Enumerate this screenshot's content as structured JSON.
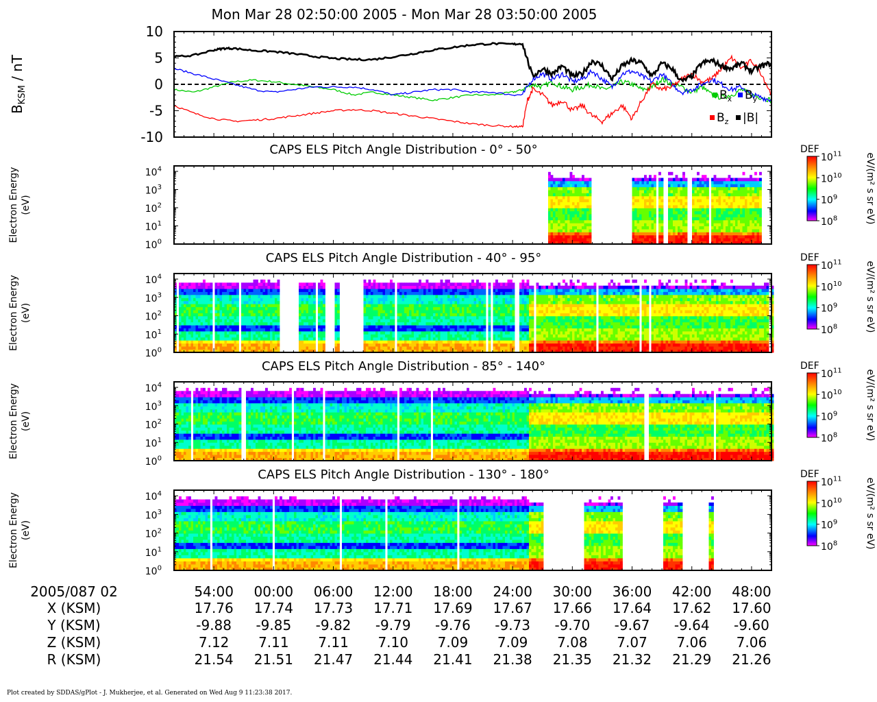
{
  "figure": {
    "title": "Mon Mar 28 02:50:00 2005 - Mon Mar 28 03:50:00 2005",
    "footer": "Plot created by SDDAS/gPlot - J. Mukherjee, et al.  Generated on Wed Aug 9 11:23:38 2017."
  },
  "ephemeris": {
    "date_label": "2005/087 02",
    "rows": [
      {
        "label": "X (KSM)",
        "values": [
          "17.76",
          "17.74",
          "17.73",
          "17.71",
          "17.69",
          "17.67",
          "17.66",
          "17.64",
          "17.62",
          "17.60"
        ]
      },
      {
        "label": "Y (KSM)",
        "values": [
          "-9.88",
          "-9.85",
          "-9.82",
          "-9.79",
          "-9.76",
          "-9.73",
          "-9.70",
          "-9.67",
          "-9.64",
          "-9.60"
        ]
      },
      {
        "label": "Z (KSM)",
        "values": [
          "7.12",
          "7.11",
          "7.11",
          "7.10",
          "7.09",
          "7.09",
          "7.08",
          "7.07",
          "7.06",
          "7.06"
        ]
      },
      {
        "label": "R (KSM)",
        "values": [
          "21.54",
          "21.51",
          "21.47",
          "21.44",
          "21.41",
          "21.38",
          "21.35",
          "21.32",
          "21.29",
          "21.26"
        ]
      }
    ]
  },
  "colorbar": {
    "label": "DEF",
    "unit": "eV/(m² s sr eV)",
    "ticks": [
      {
        "base": "10",
        "exp": "11"
      },
      {
        "base": "10",
        "exp": "10"
      },
      {
        "base": "10",
        "exp": "9"
      },
      {
        "base": "10",
        "exp": "8"
      }
    ],
    "colors": [
      "#ff0000",
      "#ff8800",
      "#ffff00",
      "#00ff00",
      "#00ffff",
      "#0000ff",
      "#ff00ff"
    ]
  },
  "chart_data": [
    {
      "type": "line",
      "ylabel_main": "B",
      "ylabel_sub": "KSM",
      "ylabel_rest": " / nT",
      "ylim": [
        -10,
        10
      ],
      "yticks": [
        10,
        5,
        0,
        -5,
        -10
      ],
      "x_minutes": [
        0,
        60
      ],
      "xtick_labels": [
        "54:00",
        "00:00",
        "06:00",
        "12:00",
        "18:00",
        "24:00",
        "30:00",
        "36:00",
        "42:00",
        "48:00"
      ],
      "xtick_minutes": [
        4,
        10,
        16,
        22,
        28,
        34,
        40,
        46,
        52,
        58
      ],
      "zero_line": true,
      "series": [
        {
          "name": "|B|",
          "color": "#000000",
          "x": [
            0,
            2,
            4,
            5,
            6,
            8,
            10,
            12,
            14,
            16,
            18,
            20,
            22,
            24,
            26,
            28,
            30,
            32,
            34,
            35,
            36,
            37,
            38,
            39,
            40,
            41,
            42,
            43,
            44,
            45,
            46,
            47,
            48,
            49,
            50,
            51,
            52,
            53,
            54,
            55,
            56,
            57,
            58,
            59,
            60
          ],
          "y": [
            5.2,
            5.5,
            6.5,
            6.8,
            6.8,
            6.4,
            6.2,
            5.8,
            5.3,
            4.9,
            4.7,
            4.7,
            5.2,
            5.8,
            6.5,
            7.0,
            7.5,
            7.7,
            7.6,
            7.7,
            1.5,
            3.0,
            2.0,
            3.5,
            1.5,
            2.0,
            4.5,
            3.5,
            1.0,
            3.5,
            4.5,
            4.0,
            1.5,
            4.0,
            3.0,
            0.5,
            1.5,
            4.0,
            4.5,
            3.5,
            3.0,
            4.0,
            2.5,
            3.5,
            4.0
          ]
        },
        {
          "name": "Bx",
          "color": "#00cc00",
          "x": [
            0,
            2,
            4,
            6,
            8,
            10,
            12,
            14,
            16,
            18,
            20,
            22,
            24,
            26,
            28,
            30,
            32,
            34,
            35,
            36,
            37,
            38,
            39,
            40,
            41,
            42,
            43,
            44,
            45,
            46,
            47,
            48,
            49,
            50,
            51,
            52,
            53,
            54,
            55,
            56,
            57,
            58,
            59,
            60
          ],
          "y": [
            -1.0,
            -1.5,
            -0.5,
            0.5,
            0.8,
            0.5,
            0.0,
            -0.5,
            -1.0,
            -2.0,
            -1.5,
            -2.0,
            -2.5,
            -3.0,
            -2.5,
            -2.0,
            -2.0,
            -1.5,
            -1.0,
            0.0,
            -0.5,
            0.5,
            -0.5,
            -1.0,
            -0.5,
            0.0,
            -1.0,
            -0.5,
            0.5,
            0.0,
            -1.0,
            -0.5,
            1.0,
            0.0,
            -0.5,
            -1.5,
            -0.5,
            -2.0,
            -2.5,
            -2.0,
            -1.0,
            -2.0,
            -2.5,
            -3.0
          ]
        },
        {
          "name": "By",
          "color": "#0000ff",
          "x": [
            0,
            2,
            4,
            6,
            8,
            10,
            12,
            14,
            16,
            18,
            20,
            22,
            24,
            26,
            28,
            30,
            32,
            34,
            35,
            36,
            37,
            38,
            39,
            40,
            41,
            42,
            43,
            44,
            45,
            46,
            47,
            48,
            49,
            50,
            51,
            52,
            53,
            54,
            55,
            56,
            57,
            58,
            59,
            60
          ],
          "y": [
            3.0,
            2.0,
            1.0,
            0.0,
            -1.0,
            -1.5,
            -1.0,
            -0.5,
            -0.5,
            -0.5,
            -1.0,
            -2.0,
            -1.5,
            -1.0,
            -1.0,
            -1.5,
            -1.5,
            -2.0,
            -2.0,
            1.0,
            2.0,
            1.0,
            2.0,
            0.5,
            1.0,
            2.5,
            1.0,
            -0.5,
            2.0,
            2.5,
            1.5,
            0.5,
            2.0,
            0.0,
            -1.5,
            -1.0,
            0.0,
            1.0,
            0.0,
            -1.0,
            -0.5,
            -2.0,
            -2.5,
            -3.0
          ]
        },
        {
          "name": "Bz",
          "color": "#ff0000",
          "x": [
            0,
            2,
            4,
            6,
            8,
            10,
            12,
            14,
            16,
            18,
            20,
            22,
            24,
            26,
            28,
            30,
            32,
            34,
            35,
            35.5,
            36,
            37,
            38,
            39,
            40,
            41,
            42,
            43,
            44,
            45,
            46,
            47,
            48,
            49,
            50,
            51,
            52,
            53,
            54,
            55,
            56,
            57,
            58,
            59,
            60
          ],
          "y": [
            -4.0,
            -5.5,
            -6.5,
            -7.0,
            -6.8,
            -6.5,
            -6.0,
            -5.5,
            -5.0,
            -4.8,
            -5.0,
            -5.5,
            -6.0,
            -6.5,
            -7.0,
            -7.5,
            -7.8,
            -8.0,
            -8.0,
            -3.0,
            -1.0,
            -2.0,
            -4.0,
            -3.0,
            -5.0,
            -4.0,
            -6.0,
            -7.0,
            -5.5,
            -4.0,
            -6.5,
            -3.0,
            0.0,
            -1.0,
            -0.5,
            1.0,
            2.0,
            0.5,
            1.0,
            3.0,
            5.0,
            3.0,
            4.5,
            2.0,
            -2.0
          ]
        }
      ],
      "legend": [
        {
          "label": "B",
          "sub": "x",
          "color": "#00cc00"
        },
        {
          "label": "B",
          "sub": "y",
          "color": "#0000ff"
        },
        {
          "label": "B",
          "sub": "z",
          "color": "#ff0000"
        },
        {
          "label": "|B|",
          "sub": "",
          "color": "#000000"
        }
      ]
    },
    {
      "type": "heatmap",
      "title": "CAPS ELS Pitch Angle Distribution - 0° - 50°",
      "ylabel": [
        "Electron Energy",
        "(eV)"
      ],
      "y_scale": "log",
      "ylim": [
        1,
        20000
      ],
      "yticks": [
        {
          "base": "10",
          "exp": "4"
        },
        {
          "base": "10",
          "exp": "3"
        },
        {
          "base": "10",
          "exp": "2"
        },
        {
          "base": "10",
          "exp": "1"
        },
        {
          "base": "10",
          "exp": "0"
        }
      ],
      "coverage_minutes": [
        [
          37.5,
          41.7
        ],
        [
          45.8,
          49.0
        ],
        [
          49.4,
          51.5
        ],
        [
          52.0,
          59.0
        ]
      ],
      "profile": "sheet"
    },
    {
      "type": "heatmap",
      "title": "CAPS ELS Pitch Angle Distribution - 40° - 95°",
      "ylabel": [
        "Electron Energy",
        "(eV)"
      ],
      "y_scale": "log",
      "ylim": [
        1,
        20000
      ],
      "yticks": [
        {
          "base": "10",
          "exp": "4"
        },
        {
          "base": "10",
          "exp": "3"
        },
        {
          "base": "10",
          "exp": "2"
        },
        {
          "base": "10",
          "exp": "1"
        },
        {
          "base": "10",
          "exp": "0"
        }
      ],
      "coverage_minutes": [
        [
          0,
          5.3
        ],
        [
          5.5,
          10.5
        ],
        [
          12.5,
          15.0
        ],
        [
          16.0,
          16.5
        ],
        [
          19.0,
          22.0
        ],
        [
          22.3,
          35.5
        ],
        [
          35.5,
          60
        ]
      ],
      "profile": "lobe-then-sheet"
    },
    {
      "type": "heatmap",
      "title": "CAPS ELS Pitch Angle Distribution - 85° - 140°",
      "ylabel": [
        "Electron Energy",
        "(eV)"
      ],
      "y_scale": "log",
      "ylim": [
        1,
        20000
      ],
      "yticks": [
        {
          "base": "10",
          "exp": "4"
        },
        {
          "base": "10",
          "exp": "3"
        },
        {
          "base": "10",
          "exp": "2"
        },
        {
          "base": "10",
          "exp": "1"
        },
        {
          "base": "10",
          "exp": "0"
        }
      ],
      "coverage_minutes": [
        [
          0,
          60
        ]
      ],
      "profile": "lobe-then-sheet"
    },
    {
      "type": "heatmap",
      "title": "CAPS ELS Pitch Angle Distribution - 130° - 180°",
      "ylabel": [
        "Electron Energy",
        "(eV)"
      ],
      "y_scale": "log",
      "ylim": [
        1,
        20000
      ],
      "yticks": [
        {
          "base": "10",
          "exp": "4"
        },
        {
          "base": "10",
          "exp": "3"
        },
        {
          "base": "10",
          "exp": "2"
        },
        {
          "base": "10",
          "exp": "1"
        },
        {
          "base": "10",
          "exp": "0"
        }
      ],
      "coverage_minutes": [
        [
          0,
          37.0
        ],
        [
          41.0,
          45.0
        ],
        [
          49.0,
          51.0
        ],
        [
          53.5,
          54.0
        ]
      ],
      "profile": "lobe-then-sheet"
    }
  ]
}
